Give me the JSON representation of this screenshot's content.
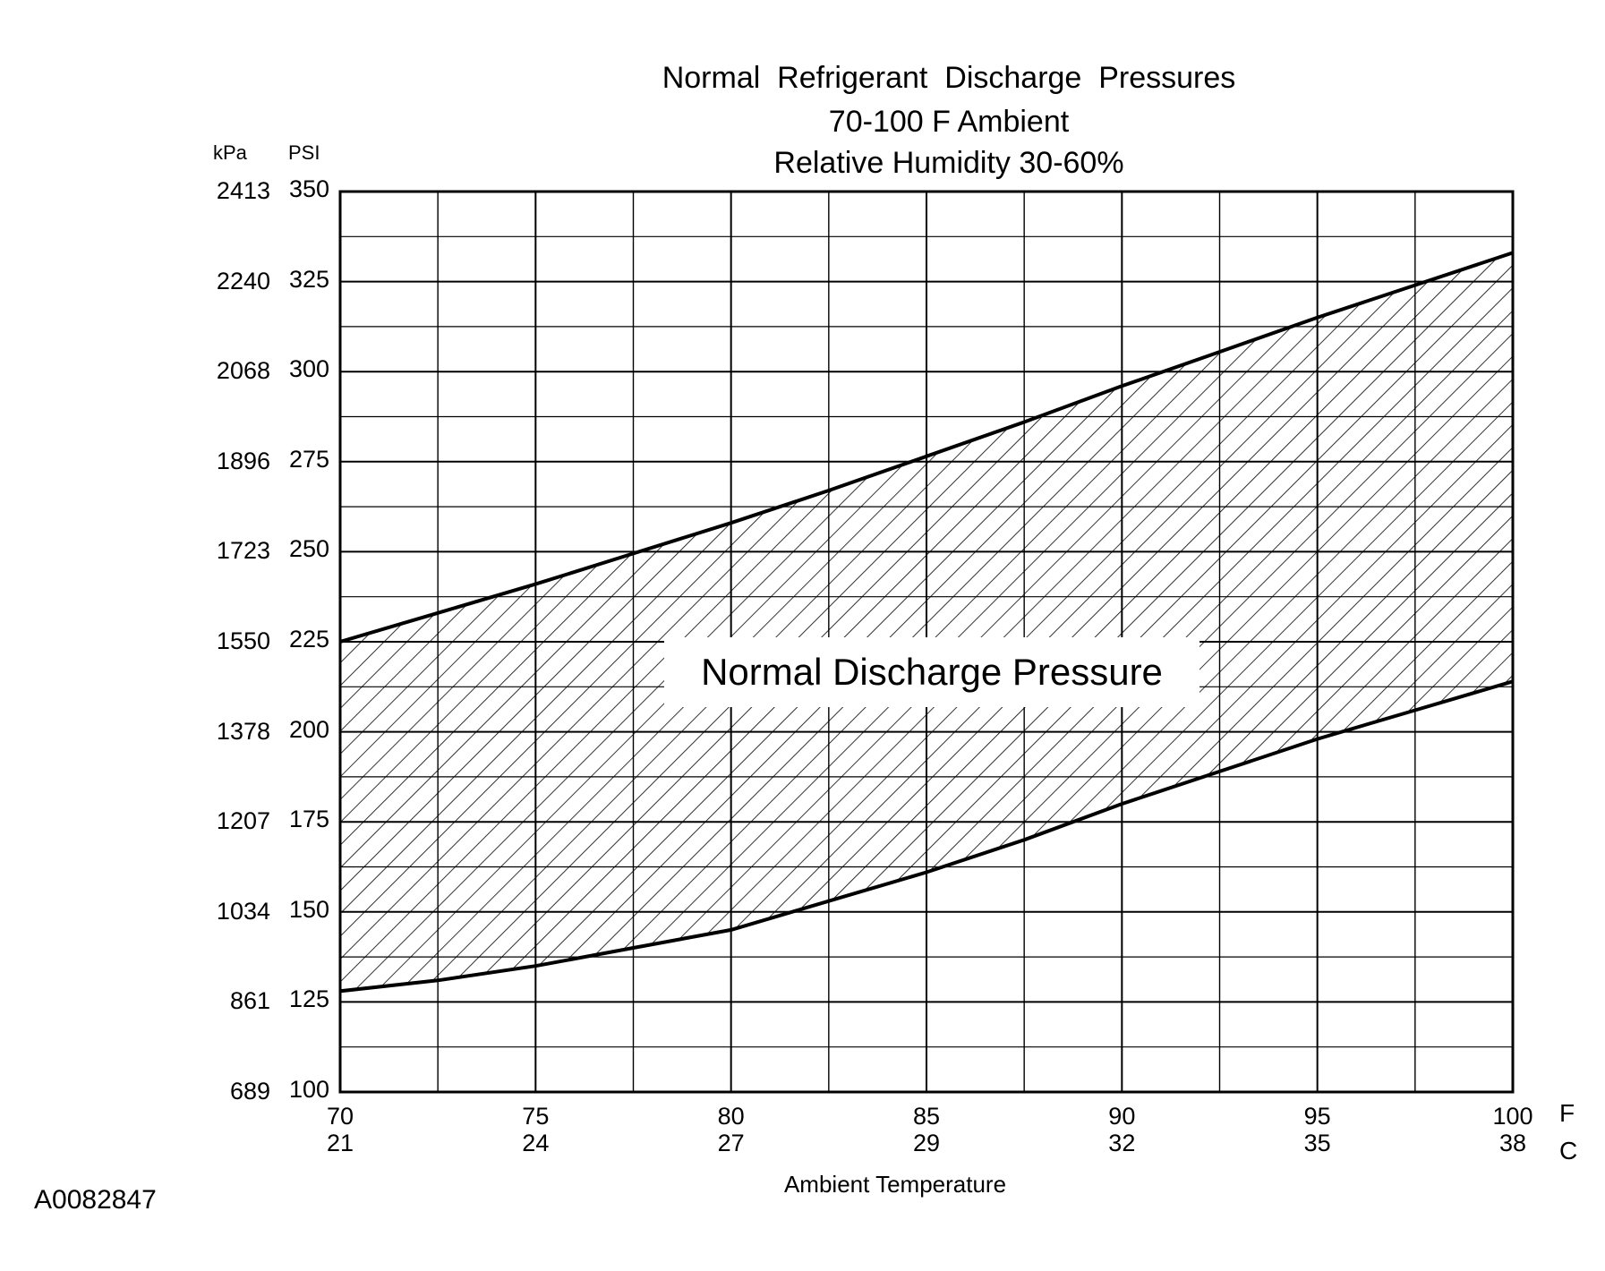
{
  "figure_id": "A0082847",
  "chart_data": {
    "type": "area",
    "title_lines": [
      "Normal  Refrigerant  Discharge  Pressures",
      "70-100 F Ambient",
      "Relative Humidity 30-60%"
    ],
    "xlabel": "Ambient Temperature",
    "xlim": [
      70,
      100
    ],
    "ylim": [
      100,
      350
    ],
    "grid": true,
    "y_axis_headers": {
      "kpa": "kPa",
      "psi": "PSI"
    },
    "y_ticks": [
      {
        "psi": "350",
        "kpa": "2413",
        "value": 350
      },
      {
        "psi": "325",
        "kpa": "2240",
        "value": 325
      },
      {
        "psi": "300",
        "kpa": "2068",
        "value": 300
      },
      {
        "psi": "275",
        "kpa": "1896",
        "value": 275
      },
      {
        "psi": "250",
        "kpa": "1723",
        "value": 250
      },
      {
        "psi": "225",
        "kpa": "1550",
        "value": 225
      },
      {
        "psi": "200",
        "kpa": "1378",
        "value": 200
      },
      {
        "psi": "175",
        "kpa": "1207",
        "value": 175
      },
      {
        "psi": "150",
        "kpa": "1034",
        "value": 150
      },
      {
        "psi": "125",
        "kpa": "861",
        "value": 125
      },
      {
        "psi": "100",
        "kpa": "689",
        "value": 100
      }
    ],
    "x_ticks": [
      {
        "f": "70",
        "c": "21",
        "value": 70
      },
      {
        "f": "75",
        "c": "24",
        "value": 75
      },
      {
        "f": "80",
        "c": "27",
        "value": 80
      },
      {
        "f": "85",
        "c": "29",
        "value": 85
      },
      {
        "f": "90",
        "c": "32",
        "value": 90
      },
      {
        "f": "95",
        "c": "35",
        "value": 95
      },
      {
        "f": "100",
        "c": "38",
        "value": 100
      }
    ],
    "x_unit_labels": {
      "f": "F",
      "c": "C"
    },
    "minor_x_gridlines": [
      72.5,
      77.5,
      82.5,
      87.5,
      92.5,
      97.5
    ],
    "band_label": "Normal Discharge Pressure",
    "series": [
      {
        "x": [
          70,
          72.5,
          75,
          77.5,
          80,
          82.5,
          85,
          87.5,
          90,
          92.5,
          95,
          97.5,
          100
        ],
        "values": [
          225,
          233,
          241,
          249.5,
          258,
          267,
          276.5,
          286,
          296,
          305.5,
          315,
          324,
          333
        ]
      },
      {
        "x": [
          70,
          72.5,
          75,
          77.5,
          80,
          82.5,
          85,
          87.5,
          90,
          92.5,
          95,
          97.5,
          100
        ],
        "values": [
          128,
          131,
          135,
          140,
          145,
          153,
          161,
          170,
          180,
          189,
          198,
          206,
          214
        ]
      }
    ]
  }
}
